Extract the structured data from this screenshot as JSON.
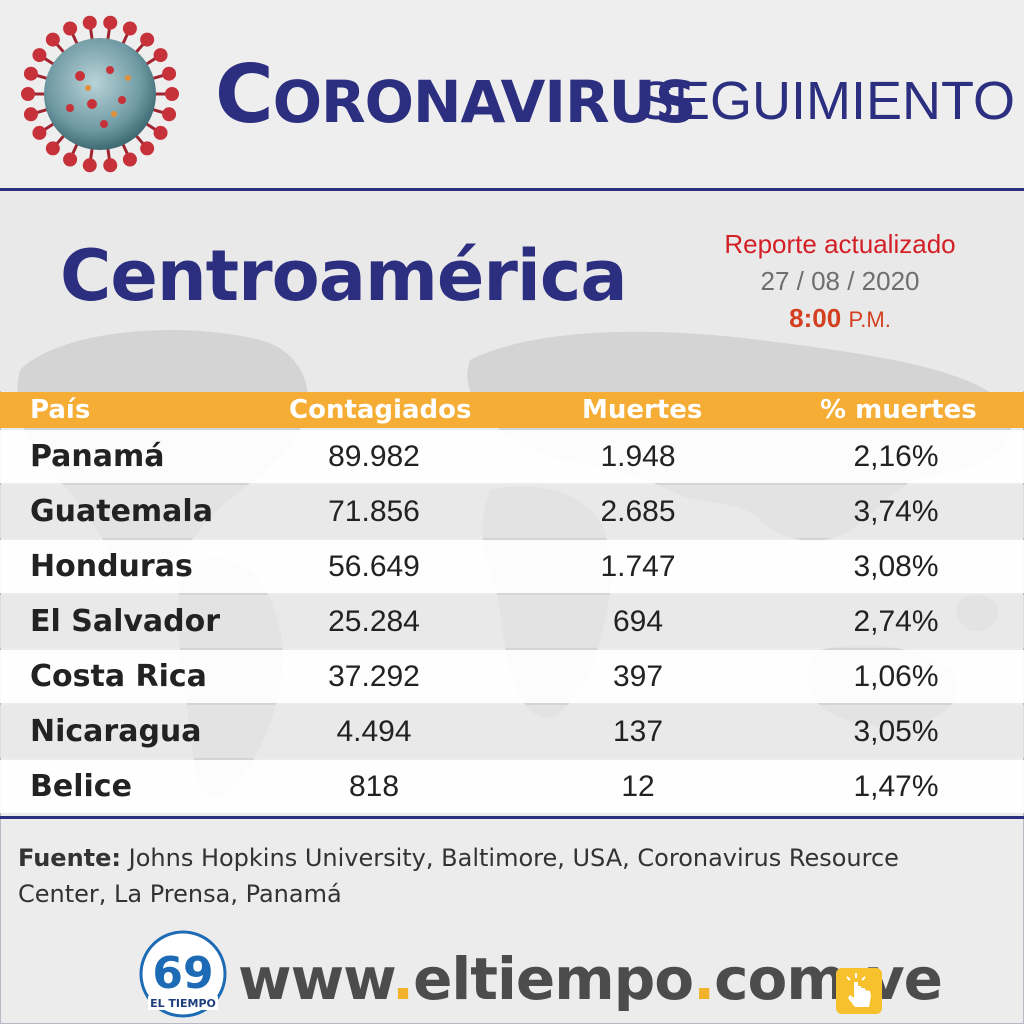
{
  "header": {
    "title_first_letter": "C",
    "title_rest": "ORONAVIRUS",
    "title_sub": "SEGUIMIENTO"
  },
  "region": {
    "title": "Centroamérica",
    "report_label": "Reporte actualizado",
    "report_date": "27 / 08 / 2020",
    "report_time": "8:00",
    "report_ampm": "P.M."
  },
  "table": {
    "headers": [
      "País",
      "Contagiados",
      "Muertes",
      "% muertes"
    ],
    "rows": [
      {
        "country": "Panamá",
        "cases": "89.982",
        "deaths": "1.948",
        "pct": "2,16%"
      },
      {
        "country": "Guatemala",
        "cases": "71.856",
        "deaths": "2.685",
        "pct": "3,74%"
      },
      {
        "country": "Honduras",
        "cases": "56.649",
        "deaths": "1.747",
        "pct": "3,08%"
      },
      {
        "country": "El Salvador",
        "cases": "25.284",
        "deaths": "694",
        "pct": "2,74%"
      },
      {
        "country": "Costa Rica",
        "cases": "37.292",
        "deaths": "397",
        "pct": "1,06%"
      },
      {
        "country": "Nicaragua",
        "cases": "4.494",
        "deaths": "137",
        "pct": "3,05%"
      },
      {
        "country": "Belice",
        "cases": "818",
        "deaths": "12",
        "pct": "1,47%"
      }
    ]
  },
  "source": {
    "label": "Fuente:",
    "text": " Johns Hopkins University, Baltimore, USA, Coronavirus Resource Center, La Prensa, Panamá"
  },
  "footer": {
    "logo_number": "69",
    "logo_name": "EL TIEMPO",
    "site_parts": [
      "www",
      ".",
      "eltiempo",
      ".",
      "com",
      ".",
      "ve"
    ]
  },
  "colors": {
    "navy": "#2c2e80",
    "header_bar": "#f5ad36",
    "report_red": "#d32027",
    "accent_yellow": "#f2b22c"
  },
  "icons": [
    "coronavirus-icon",
    "world-map-icon",
    "click-hand-icon"
  ]
}
